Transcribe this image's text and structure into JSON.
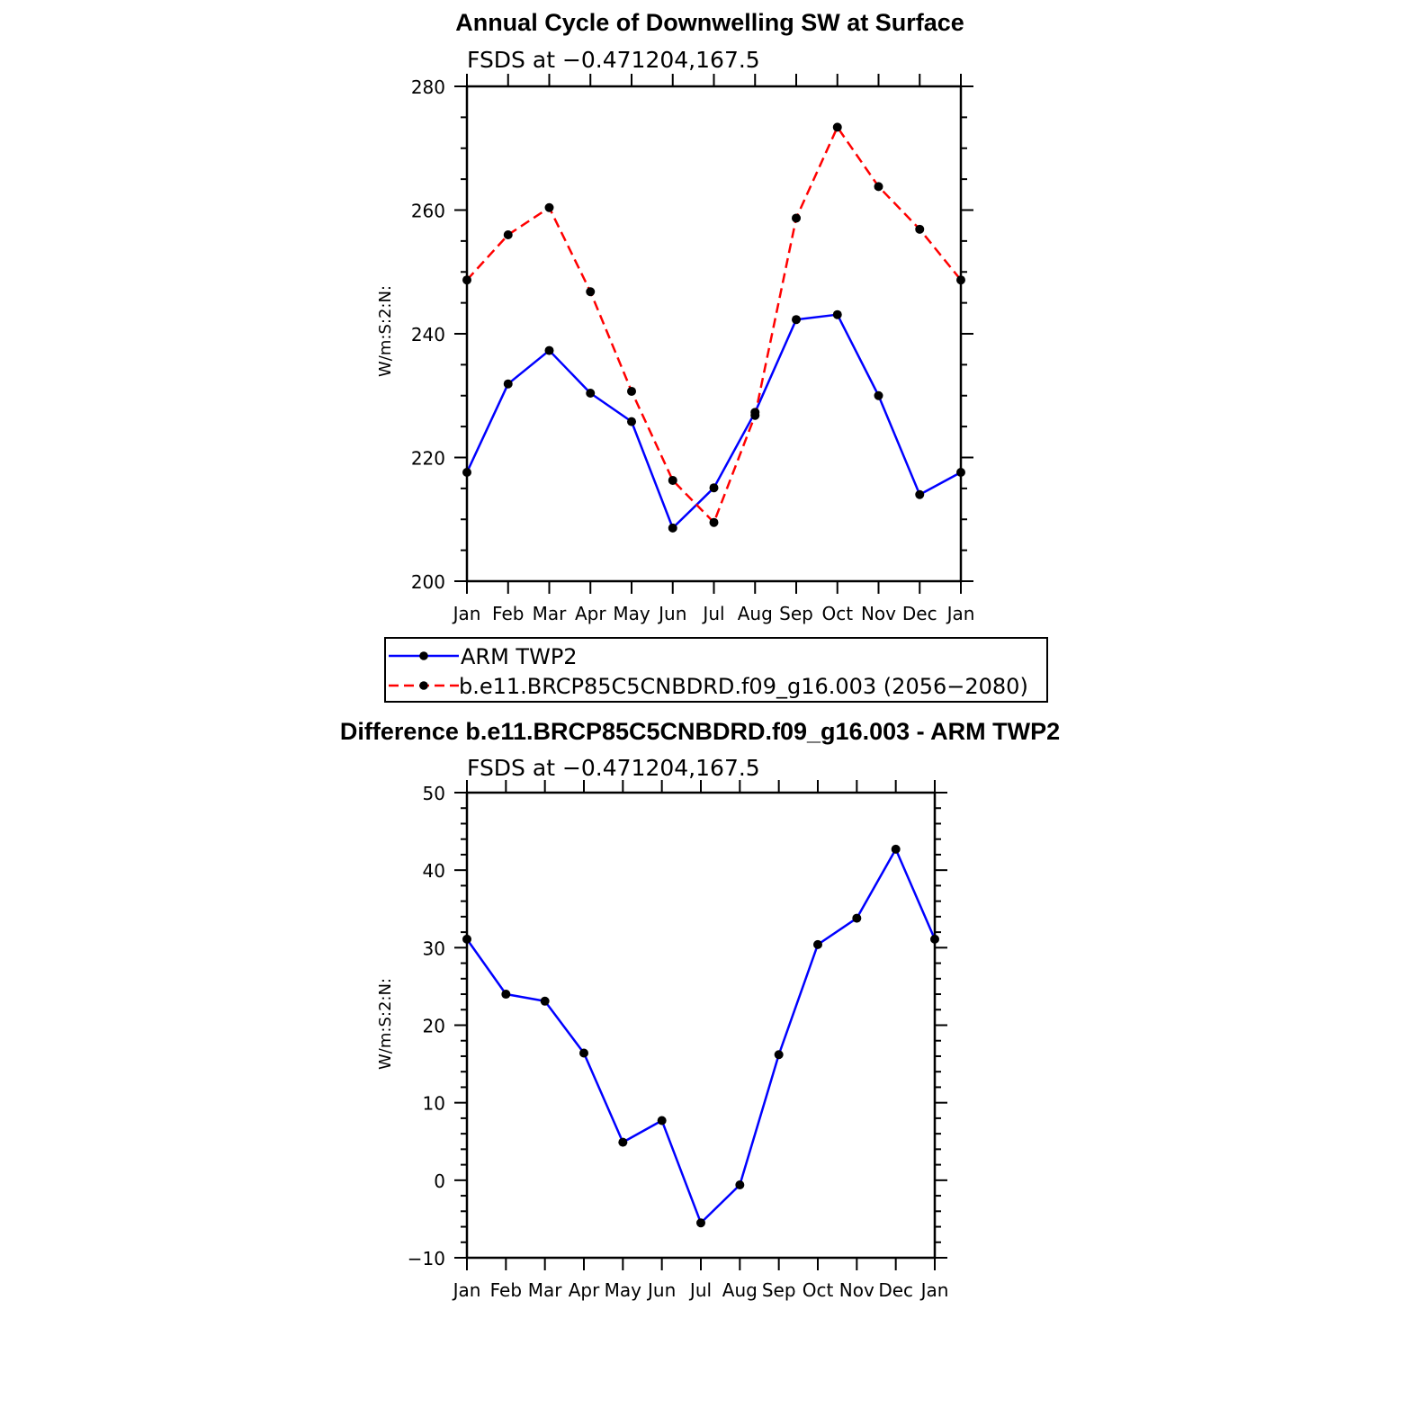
{
  "colors": {
    "arm": "#0000ff",
    "model": "#ff0000",
    "marker": "#000000",
    "axis": "#000000"
  },
  "chart_data": [
    {
      "type": "line",
      "title": "Annual Cycle of Downwelling SW at Surface",
      "subtitle": "FSDS at −0.471204,167.5",
      "xlabel": "",
      "ylabel": "W/m:S:2:N:",
      "ylim": [
        200,
        280
      ],
      "yticks": [
        200,
        220,
        240,
        260,
        280
      ],
      "yminor_step": 5,
      "categories": [
        "Jan",
        "Feb",
        "Mar",
        "Apr",
        "May",
        "Jun",
        "Jul",
        "Aug",
        "Sep",
        "Oct",
        "Nov",
        "Dec",
        "Jan"
      ],
      "series": [
        {
          "name": "ARM TWP2",
          "style": "solid",
          "values": [
            217.6,
            231.9,
            237.3,
            230.4,
            225.8,
            208.6,
            215.1,
            227.3,
            242.3,
            243.1,
            230.0,
            214.0,
            217.6
          ]
        },
        {
          "name": "b.e11.BRCP85C5CNBDRD.f09_g16.003 (2056−2080)",
          "style": "dashed",
          "values": [
            248.7,
            256.0,
            260.4,
            246.8,
            230.7,
            216.3,
            209.5,
            226.8,
            258.7,
            273.4,
            263.8,
            256.9,
            248.7
          ]
        }
      ],
      "legend": "below",
      "grid": false
    },
    {
      "type": "line",
      "title": "Difference b.e11.BRCP85C5CNBDRD.f09_g16.003 - ARM TWP2",
      "subtitle": "FSDS at −0.471204,167.5",
      "xlabel": "",
      "ylabel": "W/m:S:2:N:",
      "ylim": [
        -10,
        50
      ],
      "yticks": [
        -10,
        0,
        10,
        20,
        30,
        40,
        50
      ],
      "ytick_labels": [
        "−10",
        "0",
        "10",
        "20",
        "30",
        "40",
        "50"
      ],
      "yminor_step": 2,
      "categories": [
        "Jan",
        "Feb",
        "Mar",
        "Apr",
        "May",
        "Jun",
        "Jul",
        "Aug",
        "Sep",
        "Oct",
        "Nov",
        "Dec",
        "Jan"
      ],
      "series": [
        {
          "style": "solid",
          "values": [
            31.1,
            24.0,
            23.1,
            16.4,
            4.9,
            7.7,
            -5.5,
            -0.6,
            16.2,
            30.4,
            33.8,
            42.7,
            31.1
          ]
        }
      ],
      "grid": false
    }
  ]
}
